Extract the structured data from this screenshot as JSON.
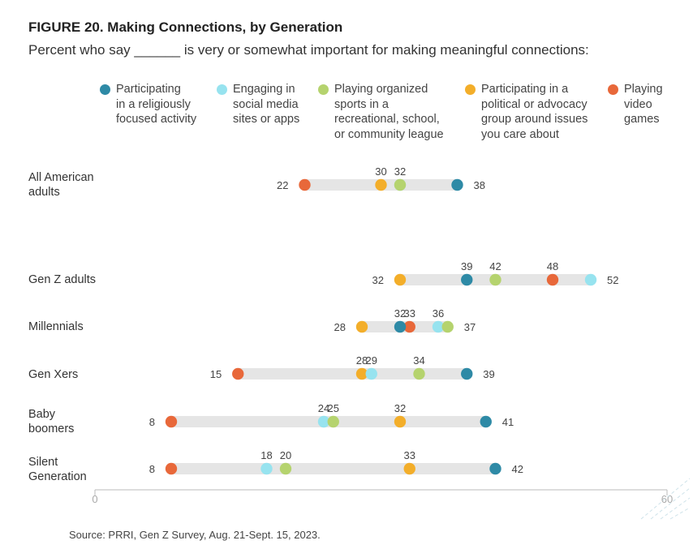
{
  "title": "FIGURE 20. Making Connections, by Generation",
  "subtitle": "Percent who say ______ is very or somewhat important for making meaningful connections:",
  "source": "Source: PRRI, Gen Z Survey, Aug. 21-Sept. 15, 2023.",
  "colors": {
    "religious": "#2e8aa6",
    "social": "#97e3ef",
    "sports": "#b5d36e",
    "political": "#f3ae2a",
    "games": "#e8683a",
    "track": "#e5e5e5",
    "axis": "#bbbbbb"
  },
  "legend": [
    {
      "key": "religious",
      "label": "Participating\nin a religiously\nfocused activity"
    },
    {
      "key": "social",
      "label": "Engaging in\nsocial media\nsites or apps"
    },
    {
      "key": "sports",
      "label": "Playing organized\nsports in a\nrecreational, school,\nor community league"
    },
    {
      "key": "political",
      "label": "Participating in a\npolitical or advocacy\ngroup around issues\nyou care about"
    },
    {
      "key": "games",
      "label": "Playing\nvideo\ngames"
    }
  ],
  "chart_data": {
    "type": "dot-range",
    "xlim": [
      0,
      60
    ],
    "x_ticks": [
      "0",
      "60"
    ],
    "grid": false,
    "legend_position": "top",
    "series": [
      {
        "name": "Participating in a religiously focused activity",
        "key": "religious"
      },
      {
        "name": "Engaging in social media sites or apps",
        "key": "social"
      },
      {
        "name": "Playing organized sports in a recreational, school, or community league",
        "key": "sports"
      },
      {
        "name": "Participating in a political or advocacy group around issues you care about",
        "key": "political"
      },
      {
        "name": "Playing video games",
        "key": "games"
      }
    ],
    "rows": [
      {
        "label": "All American\nadults",
        "values": {
          "religious": 38,
          "social": 32,
          "sports": 32,
          "political": 30,
          "games": 22
        }
      },
      {
        "label": "Gen Z adults",
        "values": {
          "religious": 39,
          "social": 52,
          "sports": 42,
          "political": 32,
          "games": 48
        }
      },
      {
        "label": "Millennials",
        "values": {
          "religious": 32,
          "social": 36,
          "sports": 37,
          "political": 28,
          "games": 33
        }
      },
      {
        "label": "Gen Xers",
        "values": {
          "religious": 39,
          "social": 29,
          "sports": 34,
          "political": 28,
          "games": 15
        }
      },
      {
        "label": "Baby\nboomers",
        "values": {
          "religious": 41,
          "social": 24,
          "sports": 25,
          "political": 32,
          "games": 8
        }
      },
      {
        "label": "Silent\nGeneration",
        "values": {
          "religious": 42,
          "social": 18,
          "sports": 20,
          "political": 33,
          "games": 8
        }
      }
    ]
  }
}
